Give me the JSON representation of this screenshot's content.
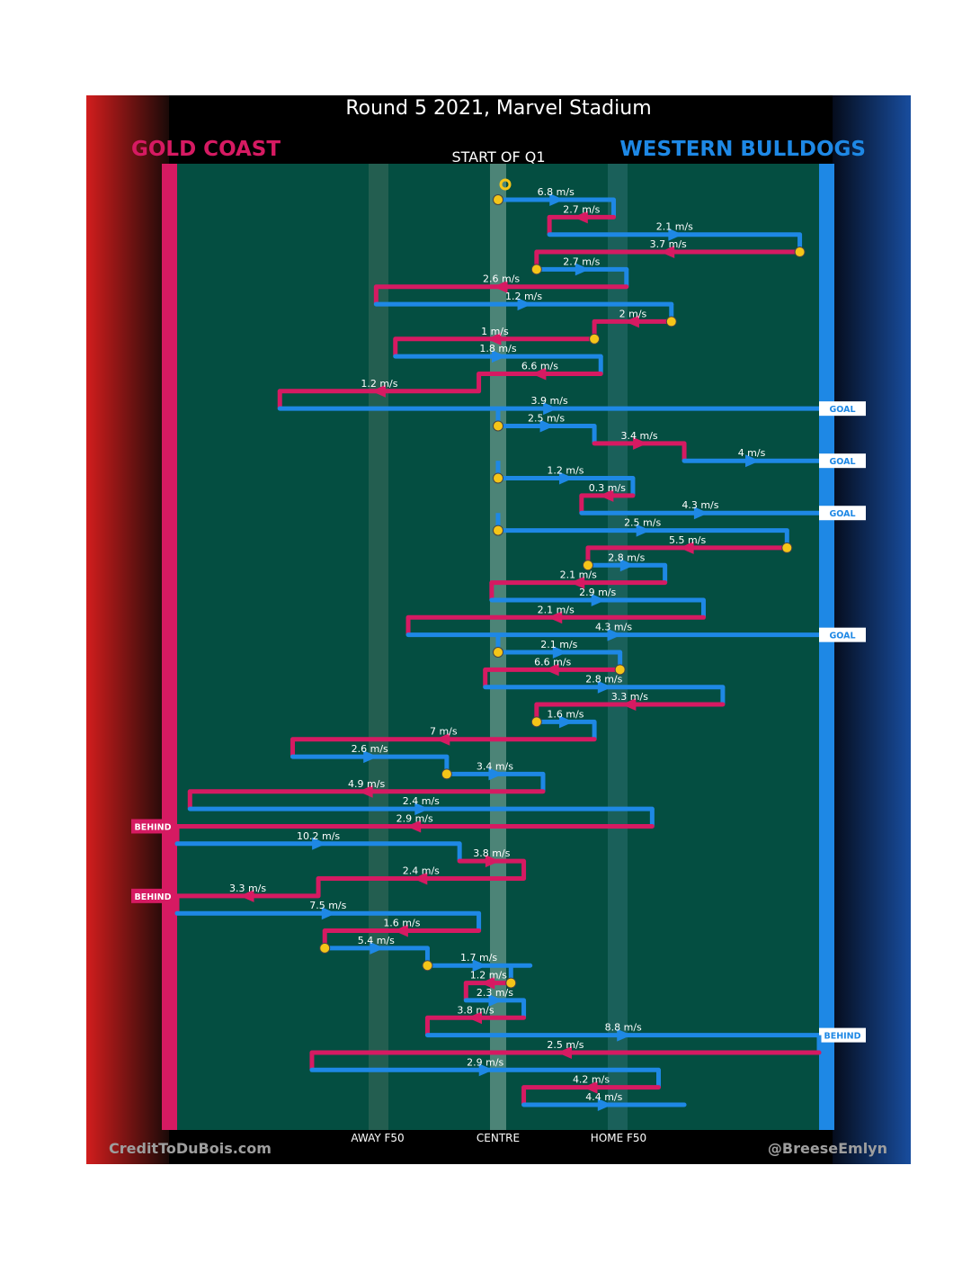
{
  "title": "Round 5 2021, Marvel Stadium",
  "home_team": {
    "name": "GOLD COAST",
    "color": "#d61a62"
  },
  "away_team": {
    "name": "WESTERN BULLDOGS",
    "color": "#1e88e5"
  },
  "start_label": "START OF Q1",
  "field_labels": {
    "away_f50": "AWAY F50",
    "centre": "CENTRE",
    "home_f50": "HOME F50"
  },
  "credits": {
    "left": "CreditToDuBois.com",
    "right": "@BreeseEmlyn"
  },
  "colors": {
    "field": "#044e41",
    "bounce_marker": "#f5c518",
    "background_left": "#c81a1a",
    "background_right": "#0f3c8c"
  },
  "chart_data": {
    "type": "line",
    "x_axis": {
      "ticks": [
        "AWAY F50",
        "CENTRE",
        "HOME F50"
      ],
      "range": [
        0,
        100
      ]
    },
    "possessions": [
      {
        "team": "bulldogs",
        "speed": "6.8 m/s",
        "from": 50,
        "to": 68,
        "start_marker": "bounce"
      },
      {
        "team": "suns",
        "speed": "2.7 m/s",
        "from": 68,
        "to": 58
      },
      {
        "team": "bulldogs",
        "speed": "2.1 m/s",
        "from": 58,
        "to": 97
      },
      {
        "team": "suns",
        "speed": "3.7 m/s",
        "from": 97,
        "to": 56,
        "start_marker": "bounce"
      },
      {
        "team": "bulldogs",
        "speed": "2.7 m/s",
        "from": 56,
        "to": 70,
        "start_marker": "bounce"
      },
      {
        "team": "suns",
        "speed": "2.6 m/s",
        "from": 70,
        "to": 31
      },
      {
        "team": "bulldogs",
        "speed": "1.2 m/s",
        "from": 31,
        "to": 77
      },
      {
        "team": "suns",
        "speed": "2 m/s",
        "from": 77,
        "to": 65,
        "start_marker": "bounce"
      },
      {
        "team": "suns",
        "speed": "1 m/s",
        "from": 65,
        "to": 34,
        "start_marker": "bounce"
      },
      {
        "team": "bulldogs",
        "speed": "1.8 m/s",
        "from": 34,
        "to": 66
      },
      {
        "team": "suns",
        "speed": "6.6 m/s",
        "from": 66,
        "to": 47
      },
      {
        "team": "suns",
        "speed": "1.2 m/s",
        "from": 47,
        "to": 16
      },
      {
        "team": "bulldogs",
        "speed": "3.9 m/s",
        "from": 16,
        "to": 100,
        "outcome": "GOAL"
      },
      {
        "team": "bulldogs",
        "speed": "2.5 m/s",
        "from": 50,
        "to": 65,
        "start_marker": "bounce"
      },
      {
        "team": "suns",
        "speed": "3.4 m/s",
        "from": 65,
        "to": 79
      },
      {
        "team": "bulldogs",
        "speed": "4 m/s",
        "from": 79,
        "to": 100,
        "outcome": "GOAL"
      },
      {
        "team": "bulldogs",
        "speed": "1.2 m/s",
        "from": 50,
        "to": 71,
        "start_marker": "bounce"
      },
      {
        "team": "suns",
        "speed": "0.3 m/s",
        "from": 71,
        "to": 63
      },
      {
        "team": "bulldogs",
        "speed": "4.3 m/s",
        "from": 63,
        "to": 100,
        "outcome": "GOAL"
      },
      {
        "team": "bulldogs",
        "speed": "2.5 m/s",
        "from": 50,
        "to": 95,
        "start_marker": "bounce"
      },
      {
        "team": "suns",
        "speed": "5.5 m/s",
        "from": 95,
        "to": 64,
        "start_marker": "bounce"
      },
      {
        "team": "bulldogs",
        "speed": "2.8 m/s",
        "from": 64,
        "to": 76,
        "start_marker": "bounce"
      },
      {
        "team": "suns",
        "speed": "2.1 m/s",
        "from": 76,
        "to": 49
      },
      {
        "team": "bulldogs",
        "speed": "2.9 m/s",
        "from": 49,
        "to": 82
      },
      {
        "team": "suns",
        "speed": "2.1 m/s",
        "from": 82,
        "to": 36
      },
      {
        "team": "bulldogs",
        "speed": "4.3 m/s",
        "from": 36,
        "to": 100,
        "outcome": "GOAL"
      },
      {
        "team": "bulldogs",
        "speed": "2.1 m/s",
        "from": 50,
        "to": 69,
        "start_marker": "bounce"
      },
      {
        "team": "suns",
        "speed": "6.6 m/s",
        "from": 69,
        "to": 48,
        "start_marker": "bounce"
      },
      {
        "team": "bulldogs",
        "speed": "2.8 m/s",
        "from": 48,
        "to": 85
      },
      {
        "team": "suns",
        "speed": "3.3 m/s",
        "from": 85,
        "to": 56
      },
      {
        "team": "bulldogs",
        "speed": "1.6 m/s",
        "from": 56,
        "to": 65,
        "start_marker": "bounce"
      },
      {
        "team": "suns",
        "speed": "7 m/s",
        "from": 65,
        "to": 18
      },
      {
        "team": "bulldogs",
        "speed": "2.6 m/s",
        "from": 18,
        "to": 42
      },
      {
        "team": "bulldogs",
        "speed": "3.4 m/s",
        "from": 42,
        "to": 57,
        "start_marker": "bounce"
      },
      {
        "team": "suns",
        "speed": "4.9 m/s",
        "from": 57,
        "to": 2
      },
      {
        "team": "bulldogs",
        "speed": "2.4 m/s",
        "from": 2,
        "to": 74
      },
      {
        "team": "suns",
        "speed": "2.9 m/s",
        "from": 74,
        "to": 0,
        "outcome": "BEHIND"
      },
      {
        "team": "bulldogs",
        "speed": "10.2 m/s",
        "from": 0,
        "to": 44
      },
      {
        "team": "suns",
        "speed": "3.8 m/s",
        "from": 44,
        "to": 54
      },
      {
        "team": "suns",
        "speed": "2.4 m/s",
        "from": 54,
        "to": 22
      },
      {
        "team": "suns",
        "speed": "3.3 m/s",
        "from": 22,
        "to": 0,
        "outcome": "BEHIND"
      },
      {
        "team": "bulldogs",
        "speed": "7.5 m/s",
        "from": 0,
        "to": 47
      },
      {
        "team": "suns",
        "speed": "1.6 m/s",
        "from": 47,
        "to": 23
      },
      {
        "team": "bulldogs",
        "speed": "5.4 m/s",
        "from": 23,
        "to": 39,
        "start_marker": "bounce"
      },
      {
        "team": "bulldogs",
        "speed": "1.7 m/s",
        "from": 39,
        "to": 55,
        "start_marker": "bounce"
      },
      {
        "team": "suns",
        "speed": "1.2 m/s",
        "from": 52,
        "to": 45,
        "start_marker": "bounce"
      },
      {
        "team": "bulldogs",
        "speed": "2.3 m/s",
        "from": 45,
        "to": 54
      },
      {
        "team": "suns",
        "speed": "3.8 m/s",
        "from": 54,
        "to": 39
      },
      {
        "team": "bulldogs",
        "speed": "8.8 m/s",
        "from": 39,
        "to": 100,
        "outcome": "BEHIND"
      },
      {
        "team": "suns",
        "speed": "2.5 m/s",
        "from": 100,
        "to": 21
      },
      {
        "team": "bulldogs",
        "speed": "2.9 m/s",
        "from": 21,
        "to": 75
      },
      {
        "team": "suns",
        "speed": "4.2 m/s",
        "from": 75,
        "to": 54
      },
      {
        "team": "bulldogs",
        "speed": "4.4 m/s",
        "from": 54,
        "to": 79
      }
    ]
  }
}
